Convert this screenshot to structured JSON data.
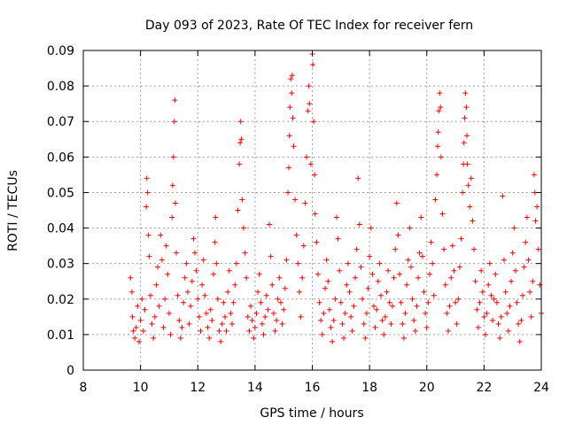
{
  "chart_data": {
    "type": "scatter",
    "title": "Day 093 of 2023, Rate Of TEC Index for receiver fern",
    "xlabel": "GPS time / hours",
    "ylabel": "ROTI / TECUs",
    "xlim": [
      8,
      24
    ],
    "ylim": [
      0,
      0.09
    ],
    "x_ticks": [
      "8",
      "10",
      "12",
      "14",
      "16",
      "18",
      "20",
      "22",
      "24"
    ],
    "y_ticks": [
      "0",
      "0.01",
      "0.02",
      "0.03",
      "0.04",
      "0.05",
      "0.06",
      "0.07",
      "0.08",
      "0.09"
    ],
    "grid": true,
    "marker": "+",
    "colors": {
      "series": "#ff0000"
    },
    "series": [
      {
        "points": [
          [
            9.65,
            0.026
          ],
          [
            9.7,
            0.022
          ],
          [
            9.72,
            0.015
          ],
          [
            9.75,
            0.011
          ],
          [
            9.8,
            0.009
          ],
          [
            9.85,
            0.012
          ],
          [
            9.9,
            0.018
          ],
          [
            9.95,
            0.008
          ],
          [
            10.0,
            0.014
          ],
          [
            10.05,
            0.02
          ],
          [
            10.1,
            0.011
          ],
          [
            10.15,
            0.017
          ],
          [
            10.2,
            0.046
          ],
          [
            10.22,
            0.054
          ],
          [
            10.25,
            0.05
          ],
          [
            10.28,
            0.038
          ],
          [
            10.3,
            0.032
          ],
          [
            10.35,
            0.021
          ],
          [
            10.4,
            0.013
          ],
          [
            10.45,
            0.009
          ],
          [
            10.5,
            0.015
          ],
          [
            10.55,
            0.024
          ],
          [
            10.6,
            0.029
          ],
          [
            10.65,
            0.018
          ],
          [
            10.7,
            0.038
          ],
          [
            10.75,
            0.031
          ],
          [
            10.8,
            0.012
          ],
          [
            10.85,
            0.02
          ],
          [
            10.9,
            0.035
          ],
          [
            10.95,
            0.027
          ],
          [
            11.0,
            0.016
          ],
          [
            11.05,
            0.01
          ],
          [
            11.1,
            0.043
          ],
          [
            11.12,
            0.052
          ],
          [
            11.15,
            0.06
          ],
          [
            11.18,
            0.07
          ],
          [
            11.2,
            0.076
          ],
          [
            11.22,
            0.047
          ],
          [
            11.25,
            0.033
          ],
          [
            11.3,
            0.021
          ],
          [
            11.35,
            0.014
          ],
          [
            11.4,
            0.009
          ],
          [
            11.45,
            0.012
          ],
          [
            11.5,
            0.019
          ],
          [
            11.55,
            0.026
          ],
          [
            11.6,
            0.03
          ],
          [
            11.65,
            0.022
          ],
          [
            11.7,
            0.013
          ],
          [
            11.75,
            0.018
          ],
          [
            11.8,
            0.025
          ],
          [
            11.85,
            0.037
          ],
          [
            11.9,
            0.033
          ],
          [
            11.95,
            0.028
          ],
          [
            12.0,
            0.02
          ],
          [
            12.05,
            0.015
          ],
          [
            12.1,
            0.011
          ],
          [
            12.15,
            0.024
          ],
          [
            12.2,
            0.031
          ],
          [
            12.25,
            0.021
          ],
          [
            12.3,
            0.016
          ],
          [
            12.35,
            0.012
          ],
          [
            12.4,
            0.009
          ],
          [
            12.45,
            0.017
          ],
          [
            12.5,
            0.014
          ],
          [
            12.55,
            0.027
          ],
          [
            12.6,
            0.036
          ],
          [
            12.62,
            0.043
          ],
          [
            12.65,
            0.03
          ],
          [
            12.7,
            0.02
          ],
          [
            12.75,
            0.011
          ],
          [
            12.8,
            0.008
          ],
          [
            12.85,
            0.013
          ],
          [
            12.9,
            0.019
          ],
          [
            12.95,
            0.015
          ],
          [
            13.0,
            0.011
          ],
          [
            13.05,
            0.022
          ],
          [
            13.1,
            0.028
          ],
          [
            13.15,
            0.016
          ],
          [
            13.2,
            0.013
          ],
          [
            13.25,
            0.019
          ],
          [
            13.3,
            0.024
          ],
          [
            13.35,
            0.03
          ],
          [
            13.4,
            0.045
          ],
          [
            13.45,
            0.058
          ],
          [
            13.48,
            0.064
          ],
          [
            13.5,
            0.07
          ],
          [
            13.52,
            0.065
          ],
          [
            13.55,
            0.048
          ],
          [
            13.6,
            0.04
          ],
          [
            13.65,
            0.033
          ],
          [
            13.7,
            0.026
          ],
          [
            13.75,
            0.015
          ],
          [
            13.8,
            0.011
          ],
          [
            13.85,
            0.018
          ],
          [
            13.9,
            0.014
          ],
          [
            13.95,
            0.009
          ],
          [
            14.0,
            0.012
          ],
          [
            14.05,
            0.016
          ],
          [
            14.1,
            0.022
          ],
          [
            14.15,
            0.027
          ],
          [
            14.2,
            0.019
          ],
          [
            14.25,
            0.013
          ],
          [
            14.3,
            0.01
          ],
          [
            14.35,
            0.015
          ],
          [
            14.4,
            0.021
          ],
          [
            14.45,
            0.017
          ],
          [
            14.5,
            0.041
          ],
          [
            14.55,
            0.032
          ],
          [
            14.6,
            0.024
          ],
          [
            14.65,
            0.016
          ],
          [
            14.7,
            0.011
          ],
          [
            14.75,
            0.014
          ],
          [
            14.8,
            0.02
          ],
          [
            14.85,
            0.026
          ],
          [
            14.9,
            0.019
          ],
          [
            14.95,
            0.013
          ],
          [
            15.0,
            0.017
          ],
          [
            15.05,
            0.023
          ],
          [
            15.1,
            0.031
          ],
          [
            15.15,
            0.05
          ],
          [
            15.18,
            0.057
          ],
          [
            15.2,
            0.066
          ],
          [
            15.22,
            0.074
          ],
          [
            15.25,
            0.082
          ],
          [
            15.28,
            0.078
          ],
          [
            15.3,
            0.083
          ],
          [
            15.32,
            0.071
          ],
          [
            15.35,
            0.063
          ],
          [
            15.4,
            0.048
          ],
          [
            15.45,
            0.038
          ],
          [
            15.5,
            0.03
          ],
          [
            15.55,
            0.022
          ],
          [
            15.6,
            0.015
          ],
          [
            15.65,
            0.026
          ],
          [
            15.7,
            0.035
          ],
          [
            15.75,
            0.047
          ],
          [
            15.8,
            0.06
          ],
          [
            15.85,
            0.073
          ],
          [
            15.88,
            0.08
          ],
          [
            15.9,
            0.075
          ],
          [
            15.95,
            0.058
          ],
          [
            16.0,
            0.089
          ],
          [
            16.02,
            0.086
          ],
          [
            16.05,
            0.07
          ],
          [
            16.08,
            0.055
          ],
          [
            16.1,
            0.044
          ],
          [
            16.15,
            0.036
          ],
          [
            16.2,
            0.027
          ],
          [
            16.25,
            0.019
          ],
          [
            16.3,
            0.014
          ],
          [
            16.35,
            0.01
          ],
          [
            16.4,
            0.016
          ],
          [
            16.45,
            0.023
          ],
          [
            16.5,
            0.031
          ],
          [
            16.55,
            0.025
          ],
          [
            16.6,
            0.017
          ],
          [
            16.65,
            0.012
          ],
          [
            16.7,
            0.008
          ],
          [
            16.75,
            0.014
          ],
          [
            16.8,
            0.02
          ],
          [
            16.85,
            0.043
          ],
          [
            16.9,
            0.037
          ],
          [
            16.95,
            0.028
          ],
          [
            17.0,
            0.019
          ],
          [
            17.05,
            0.013
          ],
          [
            17.1,
            0.009
          ],
          [
            17.15,
            0.016
          ],
          [
            17.2,
            0.024
          ],
          [
            17.25,
            0.03
          ],
          [
            17.3,
            0.022
          ],
          [
            17.35,
            0.015
          ],
          [
            17.4,
            0.011
          ],
          [
            17.45,
            0.018
          ],
          [
            17.5,
            0.026
          ],
          [
            17.55,
            0.034
          ],
          [
            17.6,
            0.054
          ],
          [
            17.65,
            0.041
          ],
          [
            17.7,
            0.029
          ],
          [
            17.75,
            0.02
          ],
          [
            17.8,
            0.013
          ],
          [
            17.85,
            0.009
          ],
          [
            17.9,
            0.016
          ],
          [
            17.95,
            0.023
          ],
          [
            18.0,
            0.032
          ],
          [
            18.05,
            0.04
          ],
          [
            18.1,
            0.027
          ],
          [
            18.15,
            0.018
          ],
          [
            18.2,
            0.012
          ],
          [
            18.25,
            0.017
          ],
          [
            18.3,
            0.025
          ],
          [
            18.35,
            0.03
          ],
          [
            18.4,
            0.021
          ],
          [
            18.45,
            0.014
          ],
          [
            18.5,
            0.01
          ],
          [
            18.55,
            0.015
          ],
          [
            18.6,
            0.022
          ],
          [
            18.65,
            0.028
          ],
          [
            18.7,
            0.019
          ],
          [
            18.75,
            0.013
          ],
          [
            18.8,
            0.018
          ],
          [
            18.85,
            0.026
          ],
          [
            18.9,
            0.034
          ],
          [
            18.95,
            0.047
          ],
          [
            19.0,
            0.038
          ],
          [
            19.05,
            0.027
          ],
          [
            19.1,
            0.019
          ],
          [
            19.15,
            0.013
          ],
          [
            19.2,
            0.009
          ],
          [
            19.25,
            0.016
          ],
          [
            19.3,
            0.024
          ],
          [
            19.35,
            0.031
          ],
          [
            19.4,
            0.04
          ],
          [
            19.45,
            0.029
          ],
          [
            19.5,
            0.02
          ],
          [
            19.55,
            0.014
          ],
          [
            19.6,
            0.011
          ],
          [
            19.65,
            0.018
          ],
          [
            19.7,
            0.026
          ],
          [
            19.75,
            0.033
          ],
          [
            19.8,
            0.043
          ],
          [
            19.85,
            0.032
          ],
          [
            19.9,
            0.022
          ],
          [
            19.95,
            0.016
          ],
          [
            20.0,
            0.012
          ],
          [
            20.05,
            0.019
          ],
          [
            20.1,
            0.027
          ],
          [
            20.15,
            0.036
          ],
          [
            20.2,
            0.03
          ],
          [
            20.25,
            0.021
          ],
          [
            20.3,
            0.048
          ],
          [
            20.35,
            0.055
          ],
          [
            20.38,
            0.063
          ],
          [
            20.4,
            0.067
          ],
          [
            20.42,
            0.073
          ],
          [
            20.45,
            0.078
          ],
          [
            20.48,
            0.074
          ],
          [
            20.5,
            0.06
          ],
          [
            20.55,
            0.044
          ],
          [
            20.6,
            0.034
          ],
          [
            20.65,
            0.024
          ],
          [
            20.7,
            0.016
          ],
          [
            20.75,
            0.011
          ],
          [
            20.8,
            0.018
          ],
          [
            20.85,
            0.026
          ],
          [
            20.9,
            0.035
          ],
          [
            20.95,
            0.028
          ],
          [
            21.0,
            0.019
          ],
          [
            21.05,
            0.013
          ],
          [
            21.1,
            0.02
          ],
          [
            21.15,
            0.029
          ],
          [
            21.2,
            0.037
          ],
          [
            21.25,
            0.05
          ],
          [
            21.28,
            0.058
          ],
          [
            21.3,
            0.064
          ],
          [
            21.32,
            0.071
          ],
          [
            21.35,
            0.078
          ],
          [
            21.38,
            0.074
          ],
          [
            21.4,
            0.066
          ],
          [
            21.42,
            0.058
          ],
          [
            21.45,
            0.052
          ],
          [
            21.5,
            0.046
          ],
          [
            21.55,
            0.054
          ],
          [
            21.6,
            0.042
          ],
          [
            21.65,
            0.034
          ],
          [
            21.7,
            0.025
          ],
          [
            21.75,
            0.017
          ],
          [
            21.8,
            0.012
          ],
          [
            21.85,
            0.019
          ],
          [
            21.9,
            0.028
          ],
          [
            21.95,
            0.022
          ],
          [
            22.0,
            0.015
          ],
          [
            22.05,
            0.01
          ],
          [
            22.1,
            0.016
          ],
          [
            22.15,
            0.024
          ],
          [
            22.2,
            0.03
          ],
          [
            22.25,
            0.021
          ],
          [
            22.3,
            0.014
          ],
          [
            22.35,
            0.02
          ],
          [
            22.4,
            0.027
          ],
          [
            22.45,
            0.019
          ],
          [
            22.5,
            0.013
          ],
          [
            22.55,
            0.009
          ],
          [
            22.6,
            0.015
          ],
          [
            22.65,
            0.049
          ],
          [
            22.7,
            0.031
          ],
          [
            22.75,
            0.022
          ],
          [
            22.8,
            0.016
          ],
          [
            22.85,
            0.011
          ],
          [
            22.9,
            0.018
          ],
          [
            22.95,
            0.025
          ],
          [
            23.0,
            0.033
          ],
          [
            23.05,
            0.04
          ],
          [
            23.1,
            0.028
          ],
          [
            23.15,
            0.019
          ],
          [
            23.2,
            0.013
          ],
          [
            23.25,
            0.008
          ],
          [
            23.3,
            0.014
          ],
          [
            23.35,
            0.021
          ],
          [
            23.4,
            0.029
          ],
          [
            23.45,
            0.036
          ],
          [
            23.5,
            0.043
          ],
          [
            23.55,
            0.031
          ],
          [
            23.6,
            0.022
          ],
          [
            23.65,
            0.015
          ],
          [
            23.7,
            0.025
          ],
          [
            23.75,
            0.055
          ],
          [
            23.78,
            0.05
          ],
          [
            23.8,
            0.042
          ],
          [
            23.85,
            0.046
          ],
          [
            23.9,
            0.034
          ],
          [
            23.95,
            0.024
          ],
          [
            24.0,
            0.016
          ]
        ]
      }
    ]
  }
}
